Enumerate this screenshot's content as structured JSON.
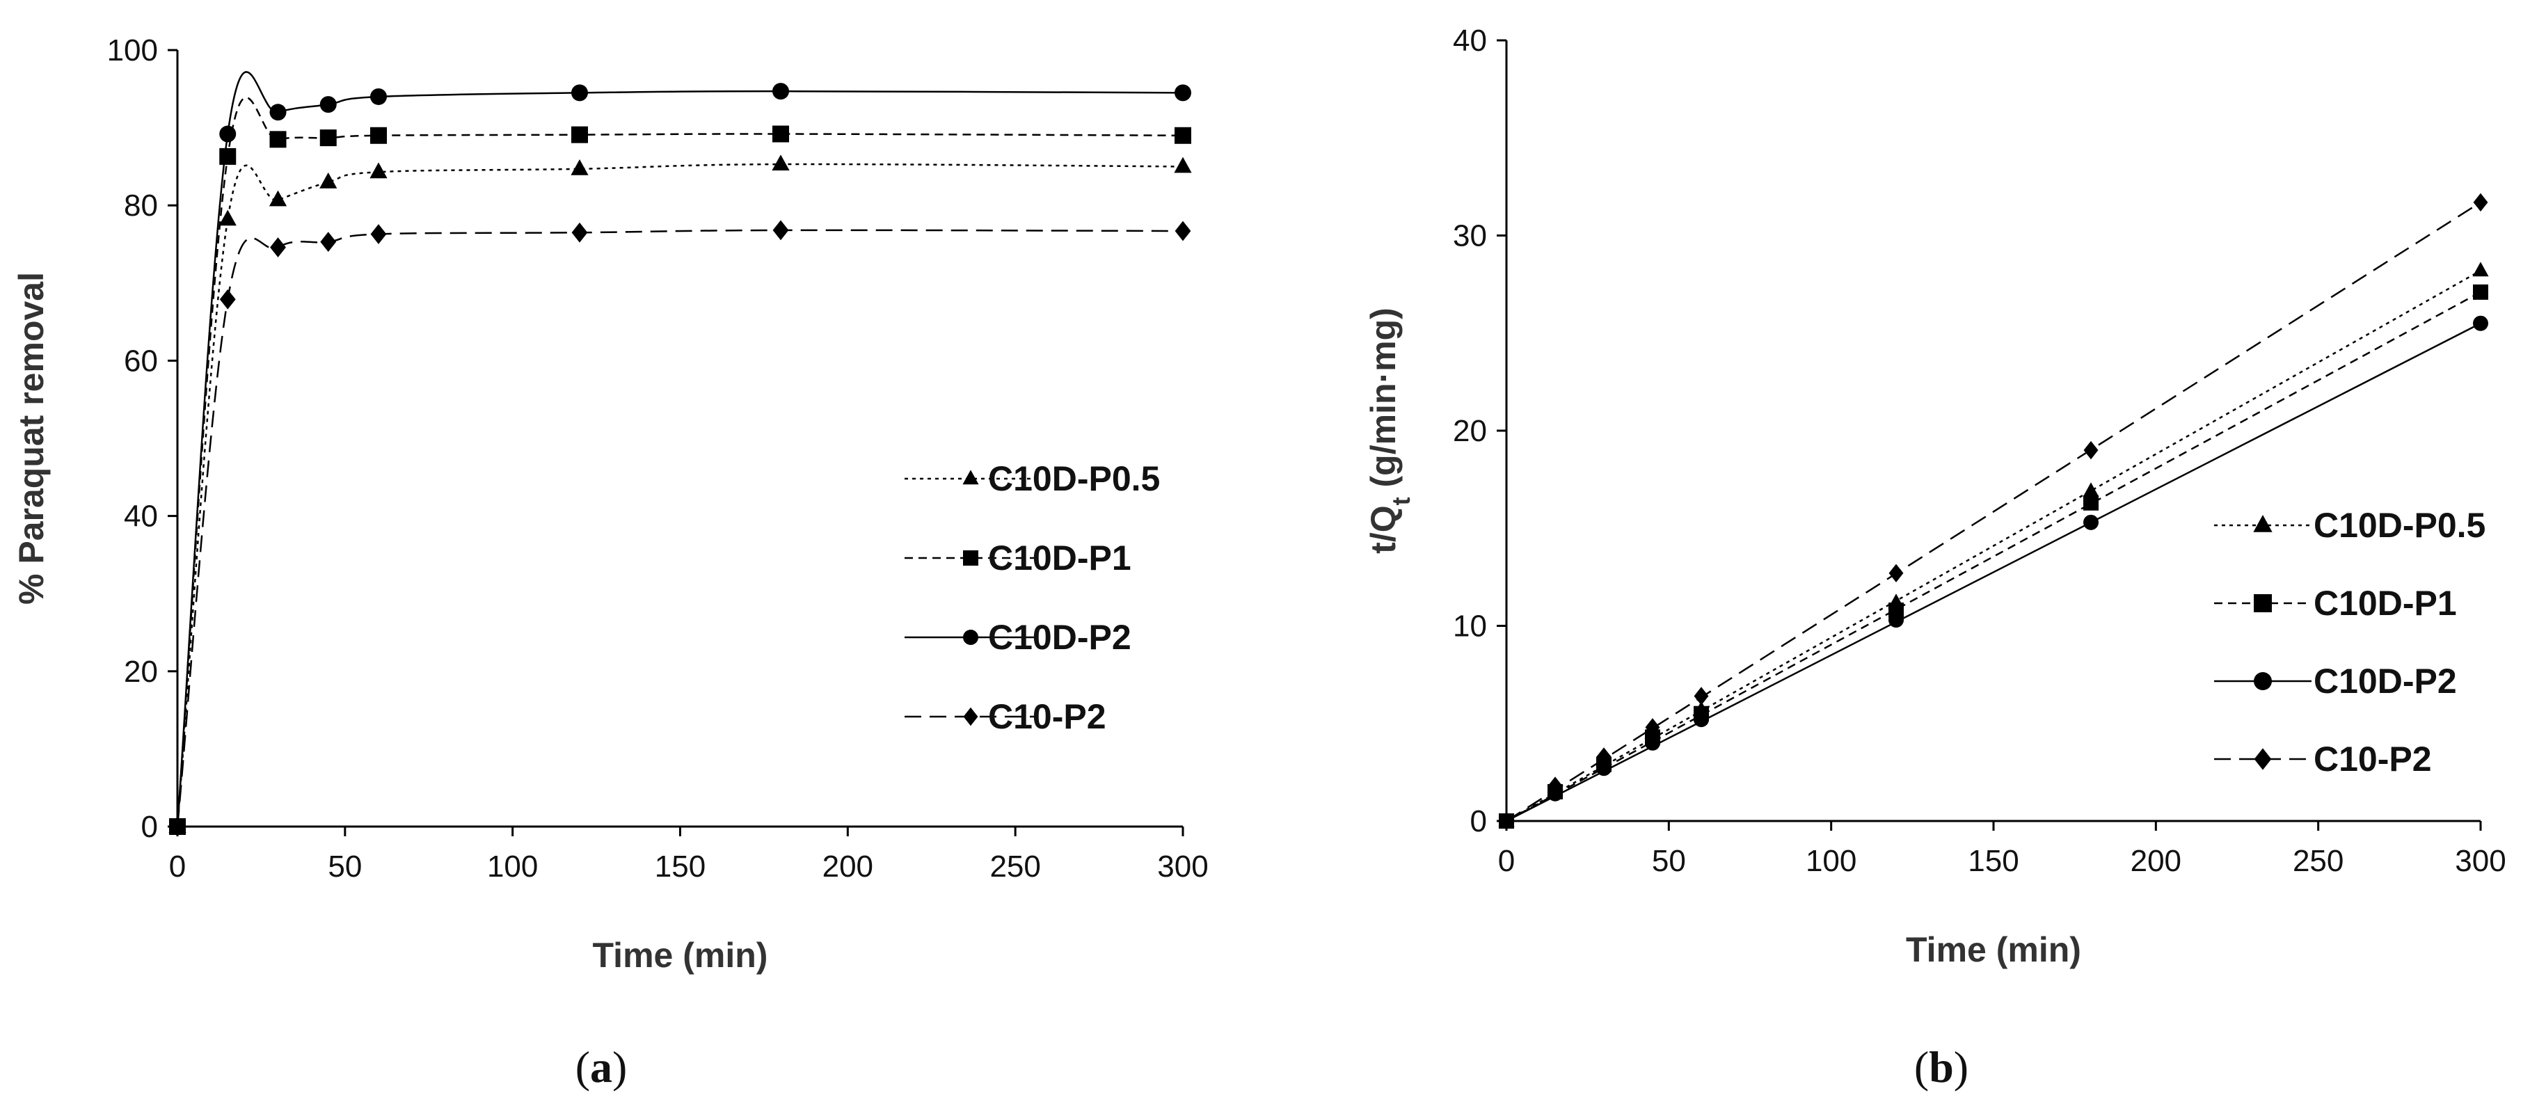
{
  "chart_data": [
    {
      "type": "line",
      "panel": "a",
      "caption": {
        "open": "(",
        "letter": "a",
        "close": ")"
      },
      "title": "",
      "xlabel": "Time (min)",
      "ylabel": "% Paraquat removal",
      "xlim": [
        0,
        300
      ],
      "ylim": [
        0,
        100
      ],
      "xticks": [
        0,
        50,
        100,
        150,
        200,
        250,
        300
      ],
      "yticks": [
        0,
        20,
        40,
        60,
        80,
        100
      ],
      "legend_position": "right-middle",
      "x": [
        0,
        15,
        30,
        45,
        60,
        120,
        180,
        300
      ],
      "series": [
        {
          "name": "C10D-P0.5",
          "marker": "triangle",
          "line": "dotted",
          "values": [
            0,
            78.2,
            80.7,
            83,
            84.3,
            84.7,
            85.3,
            85
          ]
        },
        {
          "name": "C10D-P1",
          "marker": "square",
          "line": "dashed",
          "values": [
            0,
            86.3,
            88.5,
            88.7,
            89,
            89.1,
            89.2,
            89
          ]
        },
        {
          "name": "C10D-P2",
          "marker": "circle",
          "line": "solid",
          "values": [
            0,
            89.2,
            92,
            93,
            94,
            94.5,
            94.7,
            94.5
          ]
        },
        {
          "name": "C10-P2",
          "marker": "diamond",
          "line": "longdash",
          "values": [
            0,
            67.9,
            74.6,
            75.3,
            76.3,
            76.5,
            76.8,
            76.7
          ]
        }
      ]
    },
    {
      "type": "line",
      "panel": "b",
      "caption": {
        "open": "(",
        "letter": "b",
        "close": ")"
      },
      "title": "",
      "xlabel": "Time (min)",
      "ylabel_main": "t/Q",
      "ylabel_sub": "t",
      "ylabel_rest": " (g/min·mg)",
      "xlim": [
        0,
        300
      ],
      "ylim": [
        0,
        40
      ],
      "xticks": [
        0,
        50,
        100,
        150,
        200,
        250,
        300
      ],
      "yticks": [
        0,
        10,
        20,
        30,
        40
      ],
      "legend_position": "right-middle",
      "x": [
        0,
        15,
        30,
        45,
        60,
        120,
        180,
        300
      ],
      "series": [
        {
          "name": "C10D-P0.5",
          "marker": "triangle",
          "line": "dotted",
          "values": [
            0,
            1.6,
            3.1,
            4.5,
            5.7,
            11.2,
            16.9,
            28.2
          ]
        },
        {
          "name": "C10D-P1",
          "marker": "square",
          "line": "dashed",
          "values": [
            0,
            1.5,
            2.9,
            4.3,
            5.5,
            10.8,
            16.3,
            27.1
          ]
        },
        {
          "name": "C10D-P2",
          "marker": "circle",
          "line": "solid",
          "values": [
            0,
            1.4,
            2.7,
            4,
            5.2,
            10.3,
            15.3,
            25.5
          ]
        },
        {
          "name": "C10-P2",
          "marker": "diamond",
          "line": "longdash",
          "values": [
            0,
            1.8,
            3.3,
            4.8,
            6.4,
            12.7,
            19,
            31.7
          ]
        }
      ]
    }
  ],
  "colors": {
    "ink": "#000000",
    "text": "#111111",
    "title": "#333333",
    "background": "#ffffff"
  }
}
